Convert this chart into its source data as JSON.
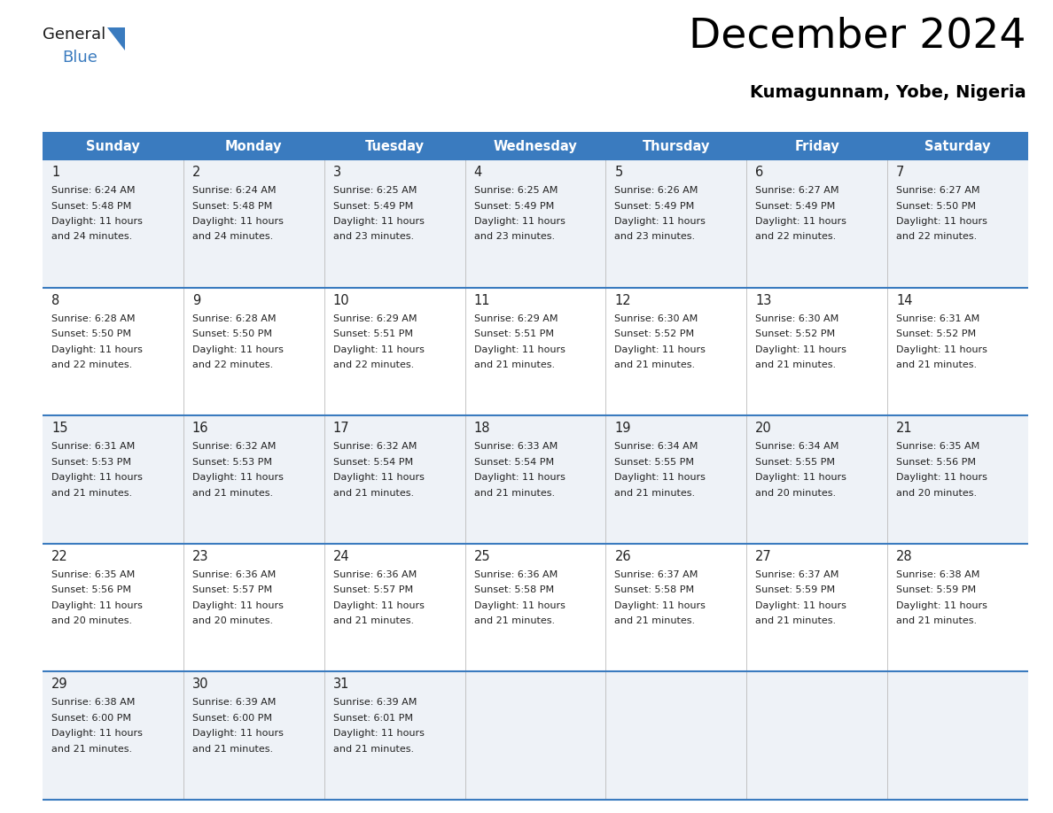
{
  "title": "December 2024",
  "subtitle": "Kumagunnam, Yobe, Nigeria",
  "header_bg": "#3a7bbf",
  "header_text": "#ffffff",
  "row_bg_odd": "#eef2f7",
  "row_bg_even": "#ffffff",
  "border_color": "#3a7bbf",
  "text_color": "#222222",
  "days_of_week": [
    "Sunday",
    "Monday",
    "Tuesday",
    "Wednesday",
    "Thursday",
    "Friday",
    "Saturday"
  ],
  "calendar_data": [
    [
      {
        "day": 1,
        "sunrise": "6:24 AM",
        "sunset": "5:48 PM",
        "daylight": "11 hours and 24 minutes."
      },
      {
        "day": 2,
        "sunrise": "6:24 AM",
        "sunset": "5:48 PM",
        "daylight": "11 hours and 24 minutes."
      },
      {
        "day": 3,
        "sunrise": "6:25 AM",
        "sunset": "5:49 PM",
        "daylight": "11 hours and 23 minutes."
      },
      {
        "day": 4,
        "sunrise": "6:25 AM",
        "sunset": "5:49 PM",
        "daylight": "11 hours and 23 minutes."
      },
      {
        "day": 5,
        "sunrise": "6:26 AM",
        "sunset": "5:49 PM",
        "daylight": "11 hours and 23 minutes."
      },
      {
        "day": 6,
        "sunrise": "6:27 AM",
        "sunset": "5:49 PM",
        "daylight": "11 hours and 22 minutes."
      },
      {
        "day": 7,
        "sunrise": "6:27 AM",
        "sunset": "5:50 PM",
        "daylight": "11 hours and 22 minutes."
      }
    ],
    [
      {
        "day": 8,
        "sunrise": "6:28 AM",
        "sunset": "5:50 PM",
        "daylight": "11 hours and 22 minutes."
      },
      {
        "day": 9,
        "sunrise": "6:28 AM",
        "sunset": "5:50 PM",
        "daylight": "11 hours and 22 minutes."
      },
      {
        "day": 10,
        "sunrise": "6:29 AM",
        "sunset": "5:51 PM",
        "daylight": "11 hours and 22 minutes."
      },
      {
        "day": 11,
        "sunrise": "6:29 AM",
        "sunset": "5:51 PM",
        "daylight": "11 hours and 21 minutes."
      },
      {
        "day": 12,
        "sunrise": "6:30 AM",
        "sunset": "5:52 PM",
        "daylight": "11 hours and 21 minutes."
      },
      {
        "day": 13,
        "sunrise": "6:30 AM",
        "sunset": "5:52 PM",
        "daylight": "11 hours and 21 minutes."
      },
      {
        "day": 14,
        "sunrise": "6:31 AM",
        "sunset": "5:52 PM",
        "daylight": "11 hours and 21 minutes."
      }
    ],
    [
      {
        "day": 15,
        "sunrise": "6:31 AM",
        "sunset": "5:53 PM",
        "daylight": "11 hours and 21 minutes."
      },
      {
        "day": 16,
        "sunrise": "6:32 AM",
        "sunset": "5:53 PM",
        "daylight": "11 hours and 21 minutes."
      },
      {
        "day": 17,
        "sunrise": "6:32 AM",
        "sunset": "5:54 PM",
        "daylight": "11 hours and 21 minutes."
      },
      {
        "day": 18,
        "sunrise": "6:33 AM",
        "sunset": "5:54 PM",
        "daylight": "11 hours and 21 minutes."
      },
      {
        "day": 19,
        "sunrise": "6:34 AM",
        "sunset": "5:55 PM",
        "daylight": "11 hours and 21 minutes."
      },
      {
        "day": 20,
        "sunrise": "6:34 AM",
        "sunset": "5:55 PM",
        "daylight": "11 hours and 20 minutes."
      },
      {
        "day": 21,
        "sunrise": "6:35 AM",
        "sunset": "5:56 PM",
        "daylight": "11 hours and 20 minutes."
      }
    ],
    [
      {
        "day": 22,
        "sunrise": "6:35 AM",
        "sunset": "5:56 PM",
        "daylight": "11 hours and 20 minutes."
      },
      {
        "day": 23,
        "sunrise": "6:36 AM",
        "sunset": "5:57 PM",
        "daylight": "11 hours and 20 minutes."
      },
      {
        "day": 24,
        "sunrise": "6:36 AM",
        "sunset": "5:57 PM",
        "daylight": "11 hours and 21 minutes."
      },
      {
        "day": 25,
        "sunrise": "6:36 AM",
        "sunset": "5:58 PM",
        "daylight": "11 hours and 21 minutes."
      },
      {
        "day": 26,
        "sunrise": "6:37 AM",
        "sunset": "5:58 PM",
        "daylight": "11 hours and 21 minutes."
      },
      {
        "day": 27,
        "sunrise": "6:37 AM",
        "sunset": "5:59 PM",
        "daylight": "11 hours and 21 minutes."
      },
      {
        "day": 28,
        "sunrise": "6:38 AM",
        "sunset": "5:59 PM",
        "daylight": "11 hours and 21 minutes."
      }
    ],
    [
      {
        "day": 29,
        "sunrise": "6:38 AM",
        "sunset": "6:00 PM",
        "daylight": "11 hours and 21 minutes."
      },
      {
        "day": 30,
        "sunrise": "6:39 AM",
        "sunset": "6:00 PM",
        "daylight": "11 hours and 21 minutes."
      },
      {
        "day": 31,
        "sunrise": "6:39 AM",
        "sunset": "6:01 PM",
        "daylight": "11 hours and 21 minutes."
      },
      null,
      null,
      null,
      null
    ]
  ],
  "logo_general_color": "#1a1a1a",
  "logo_blue_color": "#3a7bbf",
  "logo_triangle_color": "#3a7bbf"
}
